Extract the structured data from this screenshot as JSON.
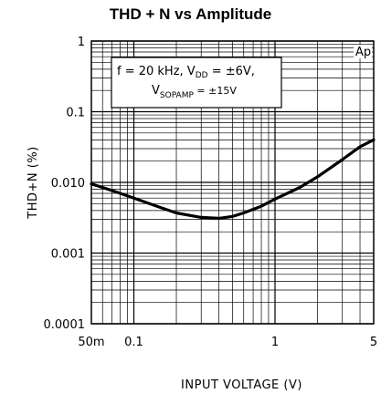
{
  "chart_data": {
    "type": "line",
    "title": "THD + N vs Amplitude",
    "xlabel": "INPUT VOLTAGE (V)",
    "ylabel": "THD+N (%)",
    "xscale": "log",
    "yscale": "log",
    "xlim": [
      0.05,
      5
    ],
    "ylim": [
      0.0001,
      1
    ],
    "grid": true,
    "x_ticks": [
      {
        "value": 0.05,
        "label": "50m"
      },
      {
        "value": 0.1,
        "label": "0.1"
      },
      {
        "value": 1,
        "label": "1"
      },
      {
        "value": 5,
        "label": "5"
      }
    ],
    "y_ticks": [
      {
        "value": 1,
        "label": "1"
      },
      {
        "value": 0.1,
        "label": "0.1"
      },
      {
        "value": 0.01,
        "label": "0.010"
      },
      {
        "value": 0.001,
        "label": "0.001"
      },
      {
        "value": 0.0001,
        "label": "0.0001"
      }
    ],
    "annotation": {
      "line1": "f = 20 kHz,  V",
      "line1_sub": "DD",
      "line1_tail": " = ±6V,",
      "line2": "V",
      "line2_sub": "SOPAMP",
      "line2_tail": " = ±15V"
    },
    "watermark": "Ap",
    "series": [
      {
        "x": [
          0.05,
          0.06,
          0.08,
          0.1,
          0.15,
          0.2,
          0.3,
          0.4,
          0.5,
          0.6,
          0.8,
          1.0,
          1.5,
          2.0,
          3.0,
          4.0,
          5.0
        ],
        "y": [
          0.0095,
          0.0085,
          0.007,
          0.006,
          0.0045,
          0.0037,
          0.0032,
          0.0031,
          0.0033,
          0.0037,
          0.0046,
          0.0058,
          0.0085,
          0.012,
          0.021,
          0.032,
          0.04
        ]
      }
    ]
  }
}
